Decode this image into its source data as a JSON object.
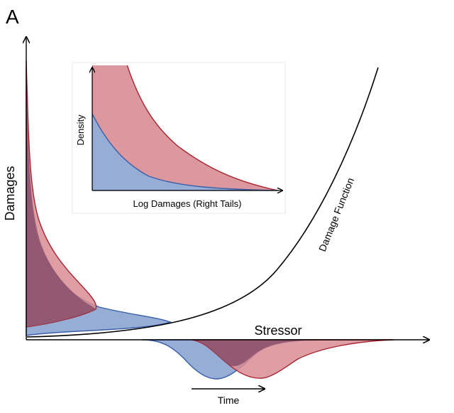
{
  "panel_label": "A",
  "main": {
    "y_axis_label": "Damages",
    "x_axis_label": "Stressor",
    "time_label": "Time",
    "curve_label": "Damage Function"
  },
  "inset": {
    "y_axis_label": "Density",
    "x_axis_label": "Log Damages (Right Tails)"
  },
  "colors": {
    "red_fill": "#d98c94",
    "red_stroke": "#a8242f",
    "blue_fill": "#96add6",
    "blue_stroke": "#3a5fa8",
    "overlap_fill": "#8a4f6a",
    "axis": "#000000"
  }
}
